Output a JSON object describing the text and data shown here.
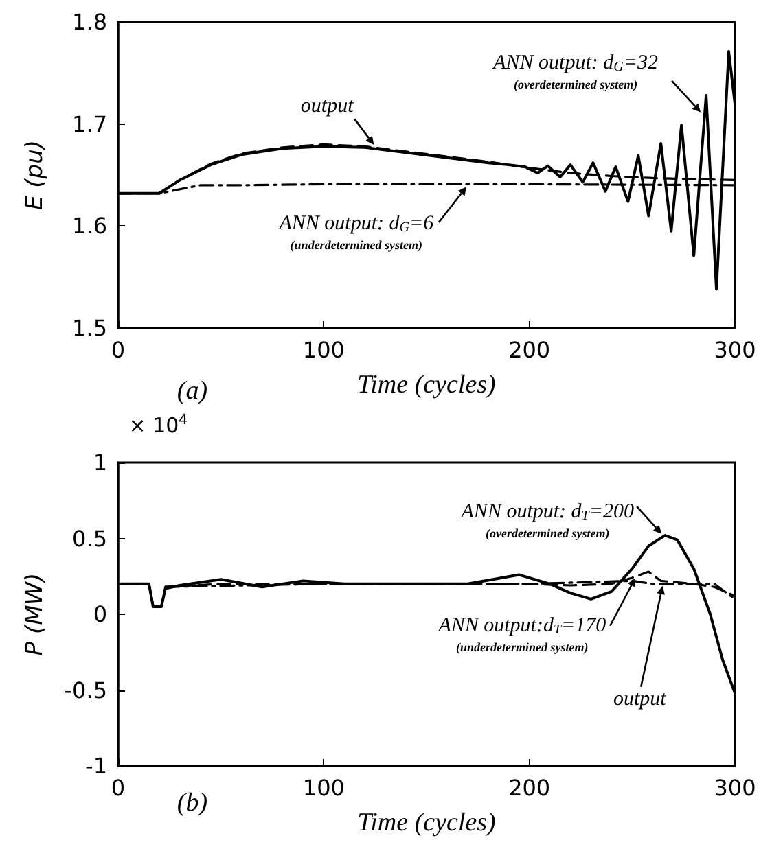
{
  "chart_data": [
    {
      "type": "line",
      "xlabel": "Time (cycles)",
      "ylabel": "E (pu)",
      "xlim": [
        0,
        300
      ],
      "xticks": [
        0,
        100,
        200,
        300
      ],
      "ylim": [
        1.5,
        1.8
      ],
      "yticks": [
        1.5,
        1.6,
        1.7,
        1.8
      ],
      "marker": "none",
      "series": [
        {
          "color": "#000000",
          "line_style": "solid",
          "x": [
            0,
            20,
            30,
            45,
            60,
            80,
            100,
            120,
            140,
            160,
            180,
            190,
            198,
            204,
            209,
            215,
            220,
            226,
            231,
            237,
            242,
            248,
            253,
            258,
            264,
            269,
            274,
            280,
            286,
            291,
            297,
            300
          ],
          "values": [
            1.632,
            1.632,
            1.645,
            1.66,
            1.67,
            1.676,
            1.678,
            1.677,
            1.672,
            1.667,
            1.662,
            1.66,
            1.658,
            1.652,
            1.659,
            1.648,
            1.66,
            1.643,
            1.662,
            1.634,
            1.658,
            1.624,
            1.669,
            1.61,
            1.681,
            1.595,
            1.699,
            1.571,
            1.728,
            1.538,
            1.771,
            1.72
          ]
        },
        {
          "color": "#000000",
          "line_style": "dashed",
          "x": [
            0,
            20,
            30,
            45,
            60,
            80,
            100,
            120,
            140,
            160,
            180,
            200,
            220,
            240,
            260,
            280,
            300
          ],
          "values": [
            1.632,
            1.632,
            1.645,
            1.661,
            1.671,
            1.677,
            1.68,
            1.678,
            1.673,
            1.668,
            1.663,
            1.657,
            1.652,
            1.649,
            1.647,
            1.646,
            1.645
          ]
        },
        {
          "color": "#000000",
          "line_style": "dashdot",
          "x": [
            0,
            20,
            40,
            60,
            100,
            200,
            300
          ],
          "values": [
            1.632,
            1.632,
            1.64,
            1.64,
            1.641,
            1.641,
            1.64
          ]
        }
      ],
      "annotations": [
        {
          "text": "output",
          "x": 125,
          "y": 1.678
        },
        {
          "text": "ANN output: d$_{G}$=32\n(overdetermined system)",
          "x": 284,
          "y": 1.71
        },
        {
          "text": "ANN output: d$_{G}$=6\n(underdetermined system)",
          "x": 170,
          "y": 1.64
        },
        "(a)"
      ]
    },
    {
      "type": "line",
      "xlabel": "Time (cycles)",
      "ylabel": "P (MW)",
      "xlim": [
        0,
        300
      ],
      "xticks": [
        0,
        100,
        200,
        300
      ],
      "ylim": [
        -1,
        1
      ],
      "yticks": [
        -1,
        -0.5,
        0,
        0.5,
        1
      ],
      "marker": "none",
      "series": [
        {
          "color": "#000000",
          "line_style": "solid",
          "x": [
            0,
            15,
            17,
            21,
            23,
            30,
            50,
            70,
            90,
            110,
            140,
            170,
            195,
            210,
            220,
            230,
            240,
            250,
            258,
            266,
            272,
            280,
            288,
            294,
            300
          ],
          "values": [
            0.2,
            0.2,
            0.05,
            0.05,
            0.17,
            0.19,
            0.23,
            0.18,
            0.22,
            0.2,
            0.2,
            0.2,
            0.26,
            0.2,
            0.14,
            0.1,
            0.15,
            0.3,
            0.45,
            0.52,
            0.49,
            0.3,
            0,
            -0.3,
            -0.52
          ]
        },
        {
          "color": "#000000",
          "line_style": "dashed",
          "x": [
            0,
            15,
            17,
            21,
            23,
            50,
            100,
            200,
            220,
            240,
            250,
            258,
            264,
            280,
            290,
            300
          ],
          "values": [
            0.2,
            0.2,
            0.05,
            0.05,
            0.18,
            0.2,
            0.2,
            0.2,
            0.19,
            0.2,
            0.24,
            0.28,
            0.22,
            0.2,
            0.18,
            0.12
          ]
        },
        {
          "color": "#000000",
          "line_style": "dashdot",
          "x": [
            0,
            15,
            17,
            21,
            23,
            100,
            200,
            250,
            260,
            290,
            300
          ],
          "values": [
            0.2,
            0.2,
            0.05,
            0.05,
            0.18,
            0.2,
            0.2,
            0.22,
            0.2,
            0.2,
            0.1
          ]
        }
      ],
      "annotations": [
        {
          "text": "ANN output: d$_{T}$=200\n(overdetermined system)",
          "x": 265,
          "y": 0.52
        },
        {
          "text": "ANN output:d$_{T}$=170\n(underdetermined system)",
          "x": 252,
          "y": 0.25
        },
        {
          "text": "output",
          "x": 265,
          "y": 0.2
        },
        "(b)",
        "× 10$^{4}$"
      ]
    }
  ]
}
